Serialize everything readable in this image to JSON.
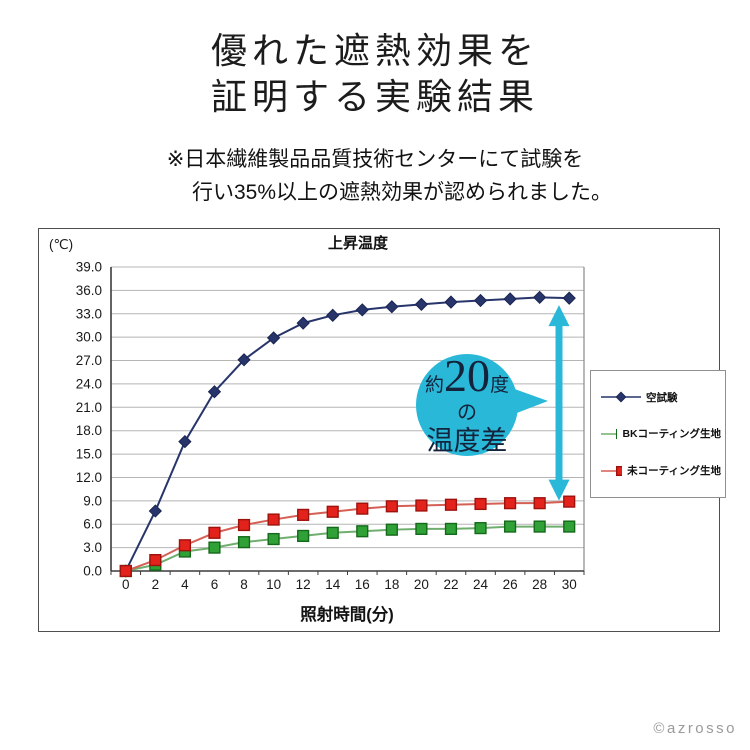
{
  "title": {
    "line1": "優れた遮熱効果を",
    "line2": "証明する実験結果"
  },
  "subtitle": {
    "line1": "※日本繊維製品品質技術センターにて試験を",
    "line2": "行い35%以上の遮熱効果が認められました。"
  },
  "annotation": {
    "prefix": "約",
    "value": "20",
    "suffix": "度",
    "line2": "の",
    "line3": "温度差",
    "bubble_color": "#29b8d8",
    "text_color": "#14233c"
  },
  "watermark": "©azrosso",
  "chart_data": {
    "type": "line",
    "title": "上昇温度",
    "y_unit_label": "(℃)",
    "xlabel": "照射時間(分)",
    "ylabel": "",
    "ylim": [
      0,
      39
    ],
    "ytick_step": 3,
    "grid": "horizontal",
    "legend_position": "right",
    "categories": [
      0,
      2,
      4,
      6,
      8,
      10,
      12,
      14,
      16,
      18,
      20,
      22,
      24,
      26,
      28,
      30
    ],
    "series": [
      {
        "name": "空試験",
        "marker": "diamond",
        "color": "#27356b",
        "line_color": "#27356b",
        "edge_color": "#1b2550",
        "values": [
          0.0,
          7.7,
          16.6,
          23.0,
          27.1,
          29.9,
          31.8,
          32.8,
          33.5,
          33.9,
          34.2,
          34.5,
          34.7,
          34.9,
          35.1,
          35.0
        ]
      },
      {
        "name": "BKコーティング生地",
        "marker": "square",
        "color": "#2fa136",
        "line_color": "#6fae6f",
        "edge_color": "#14691a",
        "values": [
          0.0,
          0.8,
          2.5,
          3.0,
          3.7,
          4.1,
          4.5,
          4.9,
          5.1,
          5.3,
          5.4,
          5.4,
          5.5,
          5.7,
          5.7,
          5.7
        ]
      },
      {
        "name": "未コーティング生地",
        "marker": "square",
        "color": "#e3221b",
        "line_color": "#d65f55",
        "edge_color": "#9d120d",
        "values": [
          0.0,
          1.4,
          3.3,
          4.9,
          5.9,
          6.6,
          7.2,
          7.6,
          8.0,
          8.3,
          8.4,
          8.5,
          8.6,
          8.7,
          8.7,
          8.9
        ]
      }
    ]
  }
}
